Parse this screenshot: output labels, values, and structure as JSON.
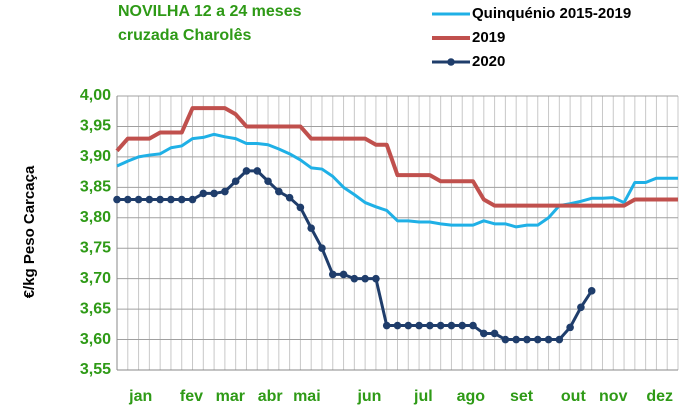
{
  "chart_data": {
    "type": "line",
    "title": [
      "NOVILHA 12 a 24 meses",
      "cruzada Charolês"
    ],
    "y_label": "€/kg Peso Carcaça",
    "x": [
      0,
      1,
      2,
      3,
      4,
      5,
      6,
      7,
      8,
      9,
      10,
      11,
      12,
      13,
      14,
      15,
      16,
      17,
      18,
      19,
      20,
      21,
      22,
      23,
      24,
      25,
      26,
      27,
      28,
      29,
      30,
      31,
      32,
      33,
      34,
      35,
      36,
      37,
      38,
      39,
      40,
      41,
      42,
      43,
      44,
      45,
      46,
      47,
      48,
      49,
      50,
      51,
      52
    ],
    "xlim": [
      0,
      52
    ],
    "xticks": [
      {
        "value": 2.2,
        "label": "jan"
      },
      {
        "value": 6.9,
        "label": "fev"
      },
      {
        "value": 10.5,
        "label": "mar"
      },
      {
        "value": 14.2,
        "label": "abr"
      },
      {
        "value": 17.6,
        "label": "mai"
      },
      {
        "value": 23.4,
        "label": "jun"
      },
      {
        "value": 28.4,
        "label": "jul"
      },
      {
        "value": 32.8,
        "label": "ago"
      },
      {
        "value": 37.5,
        "label": "set"
      },
      {
        "value": 42.3,
        "label": "out"
      },
      {
        "value": 46,
        "label": "nov"
      },
      {
        "value": 50.3,
        "label": "dez"
      }
    ],
    "ylim": [
      3.55,
      4.0
    ],
    "yticks": [
      {
        "value": 3.55,
        "label": "3,55"
      },
      {
        "value": 3.6,
        "label": "3,60"
      },
      {
        "value": 3.65,
        "label": "3,65"
      },
      {
        "value": 3.7,
        "label": "3,70"
      },
      {
        "value": 3.75,
        "label": "3,75"
      },
      {
        "value": 3.8,
        "label": "3,80"
      },
      {
        "value": 3.85,
        "label": "3,85"
      },
      {
        "value": 3.9,
        "label": "3,90"
      },
      {
        "value": 3.95,
        "label": "3,95"
      },
      {
        "value": 4.0,
        "label": "4,00"
      }
    ],
    "grid": true,
    "series": [
      {
        "name": "Quinquénio 2015-2019",
        "color": "#1fb0e6",
        "markers": false,
        "values": [
          3.885,
          3.893,
          3.9,
          3.903,
          3.905,
          3.915,
          3.918,
          3.93,
          3.932,
          3.937,
          3.933,
          3.93,
          3.922,
          3.922,
          3.92,
          3.913,
          3.905,
          3.895,
          3.882,
          3.88,
          3.868,
          3.85,
          3.838,
          3.825,
          3.818,
          3.812,
          3.795,
          3.795,
          3.793,
          3.793,
          3.79,
          3.788,
          3.788,
          3.788,
          3.795,
          3.79,
          3.79,
          3.785,
          3.788,
          3.788,
          3.8,
          3.82,
          3.823,
          3.827,
          3.832,
          3.832,
          3.833,
          3.825,
          3.858,
          3.858,
          3.865,
          3.865,
          3.865
        ]
      },
      {
        "name": "2019",
        "color": "#c0504d",
        "markers": false,
        "values": [
          3.91,
          3.93,
          3.93,
          3.93,
          3.94,
          3.94,
          3.94,
          3.98,
          3.98,
          3.98,
          3.98,
          3.97,
          3.95,
          3.95,
          3.95,
          3.95,
          3.95,
          3.95,
          3.93,
          3.93,
          3.93,
          3.93,
          3.93,
          3.93,
          3.92,
          3.92,
          3.87,
          3.87,
          3.87,
          3.87,
          3.86,
          3.86,
          3.86,
          3.86,
          3.83,
          3.82,
          3.82,
          3.82,
          3.82,
          3.82,
          3.82,
          3.82,
          3.82,
          3.82,
          3.82,
          3.82,
          3.82,
          3.82,
          3.83,
          3.83,
          3.83,
          3.83,
          3.83
        ]
      },
      {
        "name": "2020",
        "color": "#1f3d6b",
        "markers": true,
        "values": [
          3.83,
          3.83,
          3.83,
          3.83,
          3.83,
          3.83,
          3.83,
          3.83,
          3.84,
          3.84,
          3.843,
          3.86,
          3.877,
          3.877,
          3.86,
          3.843,
          3.833,
          3.817,
          3.783,
          3.75,
          3.707,
          3.707,
          3.7,
          3.7,
          3.7,
          3.623,
          3.623,
          3.623,
          3.623,
          3.623,
          3.623,
          3.623,
          3.623,
          3.623,
          3.61,
          3.61,
          3.6,
          3.6,
          3.6,
          3.6,
          3.6,
          3.6,
          3.62,
          3.653,
          3.68,
          null,
          null,
          null,
          null,
          null,
          null,
          null,
          null
        ]
      }
    ]
  }
}
